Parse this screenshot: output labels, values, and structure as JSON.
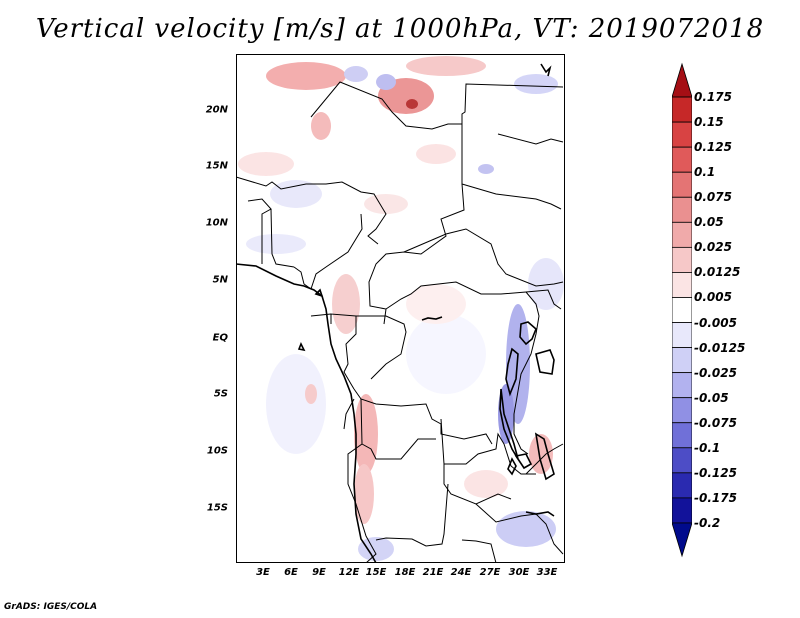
{
  "title": "Vertical velocity [m/s] at 1000hPa, VT: 2019072018",
  "footer": "GrADS: IGES/COLA",
  "map": {
    "lat_labels": [
      "20N",
      "15N",
      "10N",
      "5N",
      "EQ",
      "5S",
      "10S",
      "15S"
    ],
    "lon_labels": [
      "3E",
      "6E",
      "9E",
      "12E",
      "15E",
      "18E",
      "21E",
      "24E",
      "27E",
      "30E",
      "33E"
    ]
  },
  "colorbar": {
    "levels": [
      "0.175",
      "0.15",
      "0.125",
      "0.1",
      "0.075",
      "0.05",
      "0.025",
      "0.0125",
      "0.005",
      "-0.005",
      "-0.0125",
      "-0.025",
      "-0.05",
      "-0.075",
      "-0.1",
      "-0.125",
      "-0.175",
      "-0.2"
    ],
    "colors": [
      "#a50f15",
      "#c62828",
      "#d84343",
      "#e05a5a",
      "#e47474",
      "#ea9090",
      "#f0aaaa",
      "#f6c8c8",
      "#fbe4e4",
      "#ffffff",
      "#e8e8fb",
      "#cfd0f6",
      "#b2b2ef",
      "#9090e4",
      "#7070d8",
      "#4d4dc6",
      "#2a2ab0",
      "#12129a",
      "#000a8c"
    ]
  }
}
